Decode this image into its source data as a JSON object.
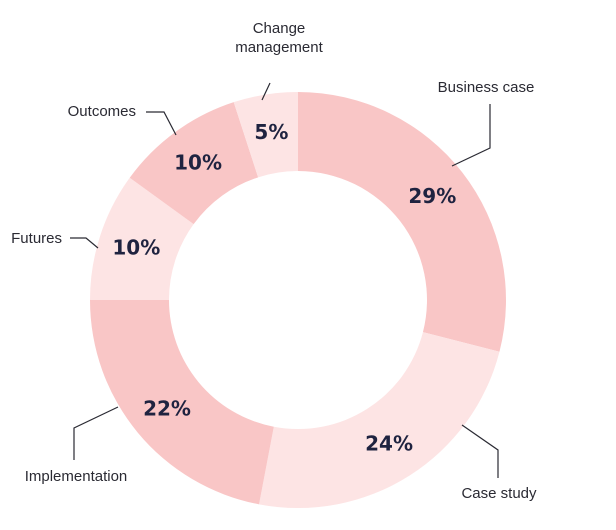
{
  "chart_data": {
    "type": "pie",
    "donut": true,
    "categories": [
      "Business case",
      "Case study",
      "Implementation",
      "Futures",
      "Outcomes",
      "Change management"
    ],
    "values": [
      29,
      24,
      22,
      10,
      10,
      5
    ],
    "data_labels": [
      "29%",
      "24%",
      "22%",
      "10%",
      "10%",
      "5%"
    ],
    "colors": [
      "#f9c6c6",
      "#fde4e4",
      "#f9c6c6",
      "#fde4e4",
      "#f9c6c6",
      "#fde4e4"
    ],
    "label_color": "#1f2340",
    "legend": "none"
  }
}
